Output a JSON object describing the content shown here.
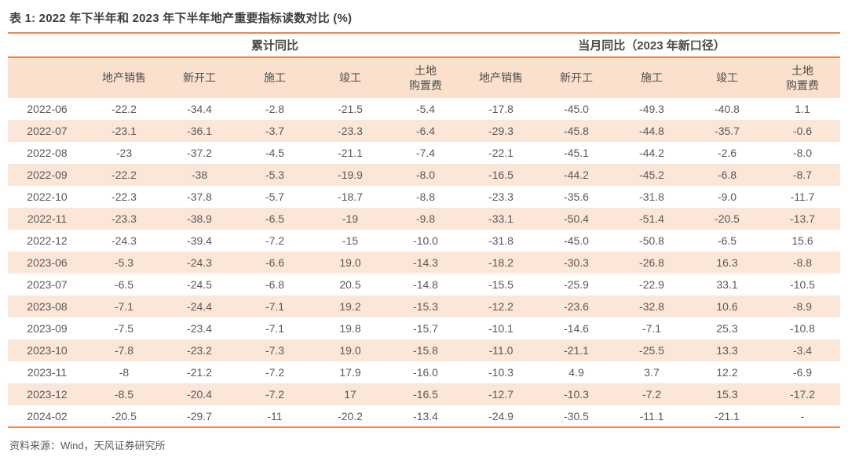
{
  "page": {
    "title": "表 1: 2022 年下半年和 2023 年下半年地产重要指标读数对比 (%)",
    "source": "资料来源：Wind，天风证券研究所"
  },
  "table": {
    "group_headers": [
      "累计同比",
      "当月同比（2023 年新口径）"
    ],
    "columns": [
      "地产销售",
      "新开工",
      "施工",
      "竣工",
      "土地\n购置费"
    ],
    "rows": [
      {
        "date": "2022-06",
        "cumulative": [
          "-22.2",
          "-34.4",
          "-2.8",
          "-21.5",
          "-5.4"
        ],
        "monthly": [
          "-17.8",
          "-45.0",
          "-49.3",
          "-40.8",
          "1.1"
        ]
      },
      {
        "date": "2022-07",
        "cumulative": [
          "-23.1",
          "-36.1",
          "-3.7",
          "-23.3",
          "-6.4"
        ],
        "monthly": [
          "-29.3",
          "-45.8",
          "-44.8",
          "-35.7",
          "-0.6"
        ]
      },
      {
        "date": "2022-08",
        "cumulative": [
          "-23",
          "-37.2",
          "-4.5",
          "-21.1",
          "-7.4"
        ],
        "monthly": [
          "-22.1",
          "-45.1",
          "-44.2",
          "-2.6",
          "-8.0"
        ]
      },
      {
        "date": "2022-09",
        "cumulative": [
          "-22.2",
          "-38",
          "-5.3",
          "-19.9",
          "-8.0"
        ],
        "monthly": [
          "-16.5",
          "-44.2",
          "-45.2",
          "-6.8",
          "-8.7"
        ]
      },
      {
        "date": "2022-10",
        "cumulative": [
          "-22.3",
          "-37.8",
          "-5.7",
          "-18.7",
          "-8.8"
        ],
        "monthly": [
          "-23.3",
          "-35.6",
          "-31.8",
          "-9.0",
          "-11.7"
        ]
      },
      {
        "date": "2022-11",
        "cumulative": [
          "-23.3",
          "-38.9",
          "-6.5",
          "-19",
          "-9.8"
        ],
        "monthly": [
          "-33.1",
          "-50.4",
          "-51.4",
          "-20.5",
          "-13.7"
        ]
      },
      {
        "date": "2022-12",
        "cumulative": [
          "-24.3",
          "-39.4",
          "-7.2",
          "-15",
          "-10.0"
        ],
        "monthly": [
          "-31.8",
          "-45.0",
          "-50.8",
          "-6.5",
          "15.6"
        ]
      },
      {
        "date": "2023-06",
        "cumulative": [
          "-5.3",
          "-24.3",
          "-6.6",
          "19.0",
          "-14.3"
        ],
        "monthly": [
          "-18.2",
          "-30.3",
          "-26.8",
          "16.3",
          "-8.8"
        ]
      },
      {
        "date": "2023-07",
        "cumulative": [
          "-6.5",
          "-24.5",
          "-6.8",
          "20.5",
          "-14.8"
        ],
        "monthly": [
          "-15.5",
          "-25.9",
          "-22.9",
          "33.1",
          "-10.5"
        ]
      },
      {
        "date": "2023-08",
        "cumulative": [
          "-7.1",
          "-24.4",
          "-7.1",
          "19.2",
          "-15.3"
        ],
        "monthly": [
          "-12.2",
          "-23.6",
          "-32.8",
          "10.6",
          "-8.9"
        ]
      },
      {
        "date": "2023-09",
        "cumulative": [
          "-7.5",
          "-23.4",
          "-7.1",
          "19.8",
          "-15.7"
        ],
        "monthly": [
          "-10.1",
          "-14.6",
          "-7.1",
          "25.3",
          "-10.8"
        ]
      },
      {
        "date": "2023-10",
        "cumulative": [
          "-7.8",
          "-23.2",
          "-7.3",
          "19.0",
          "-15.8"
        ],
        "monthly": [
          "-11.0",
          "-21.1",
          "-25.5",
          "13.3",
          "-3.4"
        ]
      },
      {
        "date": "2023-11",
        "cumulative": [
          "-8",
          "-21.2",
          "-7.2",
          "17.9",
          "-16.0"
        ],
        "monthly": [
          "-10.3",
          "4.9",
          "3.7",
          "12.2",
          "-6.9"
        ]
      },
      {
        "date": "2023-12",
        "cumulative": [
          "-8.5",
          "-20.4",
          "-7.2",
          "17",
          "-16.5"
        ],
        "monthly": [
          "-12.7",
          "-10.3",
          "-7.2",
          "15.3",
          "-17.2"
        ]
      },
      {
        "date": "2024-02",
        "cumulative": [
          "-20.5",
          "-29.7",
          "-11",
          "-20.2",
          "-13.4"
        ],
        "monthly": [
          "-24.9",
          "-30.5",
          "-11.1",
          "-21.1",
          "-"
        ]
      }
    ]
  },
  "colors": {
    "accent_orange": "#ED8845",
    "header_fill": "#FBE0CD",
    "stripe_fill": "#FBE6D8",
    "text_gray": "#595959"
  }
}
